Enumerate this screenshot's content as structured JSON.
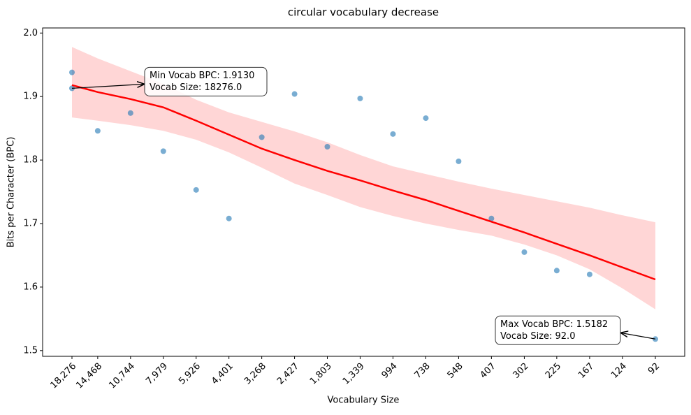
{
  "chart_data": {
    "type": "scatter",
    "title": "circular vocabulary decrease",
    "xlabel": "Vocabulary Size",
    "ylabel": "Bits per Character (BPC)",
    "xscale": "log",
    "xlim": [
      23850,
      70.5
    ],
    "ylim": [
      1.491,
      2.008
    ],
    "xticks": [
      {
        "value": 18276,
        "label": "18,276"
      },
      {
        "value": 14468,
        "label": "14,468"
      },
      {
        "value": 10744,
        "label": "10,744"
      },
      {
        "value": 7979,
        "label": "7,979"
      },
      {
        "value": 5926,
        "label": "5,926"
      },
      {
        "value": 4401,
        "label": "4,401"
      },
      {
        "value": 3268,
        "label": "3,268"
      },
      {
        "value": 2427,
        "label": "2,427"
      },
      {
        "value": 1803,
        "label": "1,803"
      },
      {
        "value": 1339,
        "label": "1,339"
      },
      994,
      738,
      548,
      407,
      302,
      225,
      167,
      124,
      92
    ],
    "yticks": [
      1.5,
      1.6,
      1.7,
      1.8,
      1.9,
      {
        "value": 2,
        "label": "2.0"
      }
    ],
    "grid": false,
    "scatter": {
      "color": "#1f77b4",
      "x": [
        18276,
        18276,
        14468,
        10744,
        7979,
        5926,
        4401,
        3268,
        2427,
        1803,
        1339,
        994,
        738,
        548,
        407,
        302,
        225,
        167,
        92
      ],
      "y": [
        1.938,
        1.913,
        1.846,
        1.874,
        1.814,
        1.753,
        1.708,
        1.836,
        1.904,
        1.821,
        1.897,
        1.841,
        1.866,
        1.798,
        1.708,
        1.655,
        1.626,
        1.62,
        1.5182
      ]
    },
    "fit": {
      "color": "#ff0000",
      "x": [
        18276,
        14468,
        10744,
        7979,
        5926,
        4401,
        3268,
        2427,
        1803,
        1339,
        994,
        738,
        548,
        407,
        302,
        225,
        167,
        124,
        92
      ],
      "y": [
        1.918,
        1.907,
        1.896,
        1.883,
        1.862,
        1.84,
        1.818,
        1.8,
        1.783,
        1.768,
        1.752,
        1.737,
        1.72,
        1.703,
        1.686,
        1.668,
        1.65,
        1.631,
        1.612
      ]
    },
    "band": {
      "color": "#ffd6d6",
      "x": [
        18276,
        14468,
        10744,
        7979,
        5926,
        4401,
        3268,
        2427,
        1803,
        1339,
        994,
        738,
        548,
        407,
        302,
        225,
        167,
        124,
        92
      ],
      "upper": [
        1.978,
        1.96,
        1.94,
        1.92,
        1.895,
        1.875,
        1.86,
        1.845,
        1.828,
        1.808,
        1.79,
        1.778,
        1.766,
        1.755,
        1.745,
        1.735,
        1.725,
        1.713,
        1.702
      ],
      "lower": [
        1.867,
        1.862,
        1.855,
        1.846,
        1.832,
        1.812,
        1.788,
        1.763,
        1.745,
        1.726,
        1.712,
        1.7,
        1.69,
        1.681,
        1.667,
        1.65,
        1.628,
        1.598,
        1.565
      ]
    },
    "annotations": [
      {
        "lines": [
          "Min Vocab BPC: 1.9130",
          "Vocab Size: 18276.0"
        ],
        "xy": [
          18276,
          1.913
        ]
      },
      {
        "lines": [
          "Max Vocab BPC: 1.5182",
          "Vocab Size: 92.0"
        ],
        "xy": [
          92,
          1.5182
        ]
      }
    ]
  }
}
